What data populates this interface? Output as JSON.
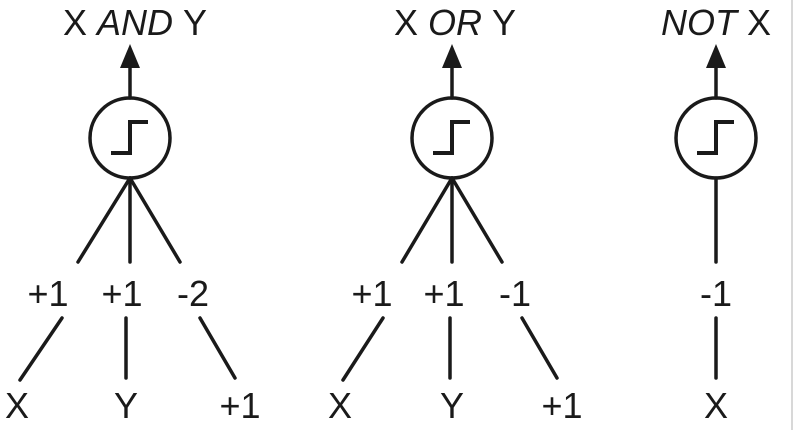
{
  "gates": [
    {
      "name": "and",
      "title": {
        "a": "X",
        "op": "AND",
        "b": "Y"
      },
      "weights": [
        "+1",
        "+1",
        "-2"
      ],
      "inputs": [
        "X",
        "Y",
        "+1"
      ]
    },
    {
      "name": "or",
      "title": {
        "a": "X",
        "op": "OR",
        "b": "Y"
      },
      "weights": [
        "+1",
        "+1",
        "-1"
      ],
      "inputs": [
        "X",
        "Y",
        "+1"
      ]
    },
    {
      "name": "not",
      "title": {
        "op": "NOT",
        "b": "X"
      },
      "weights": [
        "-1"
      ],
      "inputs": [
        "X"
      ]
    }
  ],
  "colors": {
    "ink": "#1a1a1a",
    "background": "#ffffff"
  }
}
